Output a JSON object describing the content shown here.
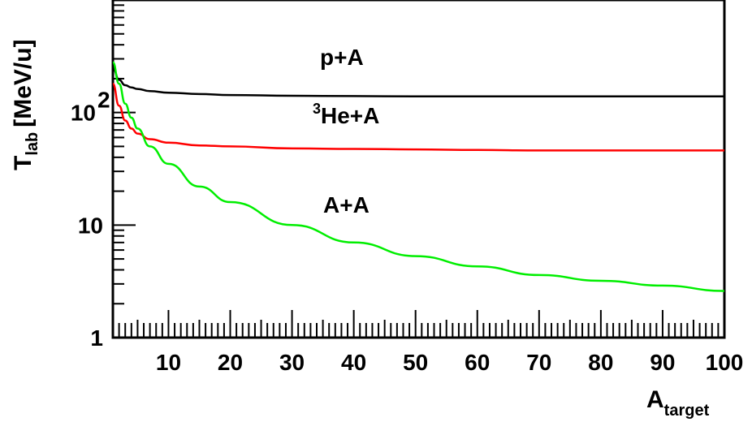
{
  "chart_data": {
    "type": "line",
    "xlabel": {
      "main": "A",
      "sub": "target"
    },
    "ylabel": {
      "main": "T",
      "sub": "lab",
      "unit": "[MeV/u]"
    },
    "xlim": [
      1,
      100
    ],
    "ylim": [
      1,
      1000
    ],
    "yscale": "log",
    "grid": false,
    "x_ticks": [
      "10",
      "20",
      "30",
      "40",
      "50",
      "60",
      "70",
      "80",
      "90",
      "100"
    ],
    "y_ticks": [
      {
        "value": 1,
        "label": "1"
      },
      {
        "value": 10,
        "label": "10"
      },
      {
        "value": 100,
        "label": "10",
        "sup": "2"
      }
    ],
    "series": [
      {
        "name": "p+A",
        "color": "#000000",
        "x": [
          1,
          2,
          3,
          4,
          5,
          7,
          10,
          15,
          20,
          30,
          40,
          50,
          60,
          70,
          80,
          90,
          100
        ],
        "y": [
          250,
          195,
          175,
          167,
          162,
          155,
          150,
          146,
          143,
          141,
          140,
          139,
          139,
          139,
          139,
          139,
          139
        ]
      },
      {
        "name": "3He+A",
        "sup": "3",
        "label": "He+A",
        "color": "#ff0000",
        "x": [
          1,
          2,
          3,
          4,
          5,
          7,
          10,
          15,
          20,
          30,
          40,
          50,
          60,
          70,
          80,
          90,
          100
        ],
        "y": [
          180,
          115,
          85,
          72,
          65,
          58,
          54,
          51,
          50,
          48,
          47.5,
          47,
          46.5,
          46,
          46,
          46,
          46
        ]
      },
      {
        "name": "A+A",
        "color": "#00ee00",
        "x": [
          1,
          2,
          3,
          4,
          5,
          7,
          10,
          15,
          20,
          30,
          40,
          50,
          60,
          70,
          80,
          90,
          100
        ],
        "y": [
          280,
          180,
          120,
          90,
          72,
          50,
          35,
          22,
          16,
          10,
          7,
          5.3,
          4.3,
          3.6,
          3.2,
          2.9,
          2.6
        ]
      }
    ]
  }
}
